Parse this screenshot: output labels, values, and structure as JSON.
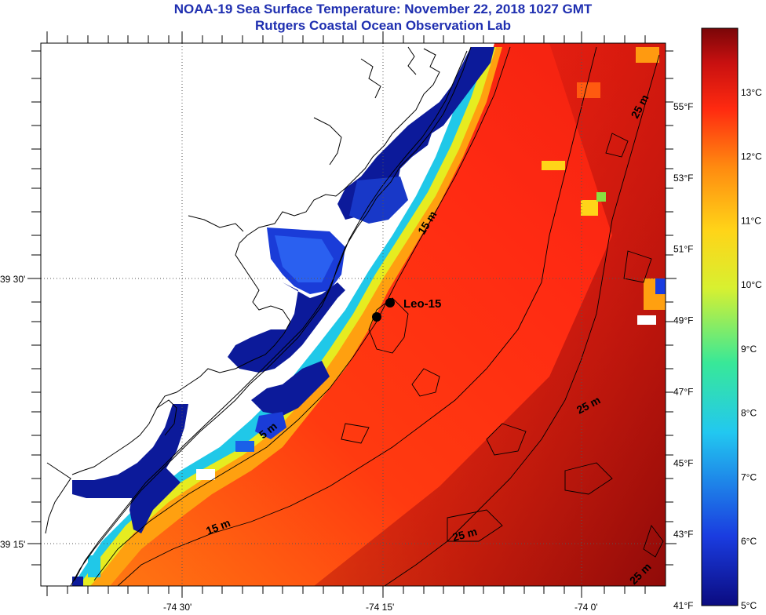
{
  "title": {
    "line1": "NOAA-19 Sea Surface Temperature:  November 22, 2018 1027 GMT",
    "line2": "Rutgers Coastal Ocean Observation Lab"
  },
  "axes": {
    "longitude_labels": [
      "-74 30'",
      "-74 15'",
      "-74 0'"
    ],
    "latitude_labels": [
      "39 30'",
      "39 15'"
    ]
  },
  "colorbar": {
    "celsius_labels": [
      "13°C",
      "12°C",
      "11°C",
      "10°C",
      "9°C",
      "8°C",
      "7°C",
      "6°C",
      "5°C"
    ],
    "fahrenheit_labels": [
      "55°F",
      "53°F",
      "51°F",
      "49°F",
      "47°F",
      "45°F",
      "43°F",
      "41°F"
    ],
    "range_celsius": [
      5,
      14
    ],
    "colors": [
      "#0b0b80",
      "#1a3ce0",
      "#22c8f0",
      "#38e898",
      "#d8f030",
      "#ffd418",
      "#ff8a10",
      "#ff2a10",
      "#c81010",
      "#7a0608"
    ]
  },
  "contour_labels": [
    "15 m",
    "5 m",
    "15 m",
    "25 m",
    "25 m",
    "25 m",
    "25 m"
  ],
  "station": {
    "name": "Leo-15"
  }
}
